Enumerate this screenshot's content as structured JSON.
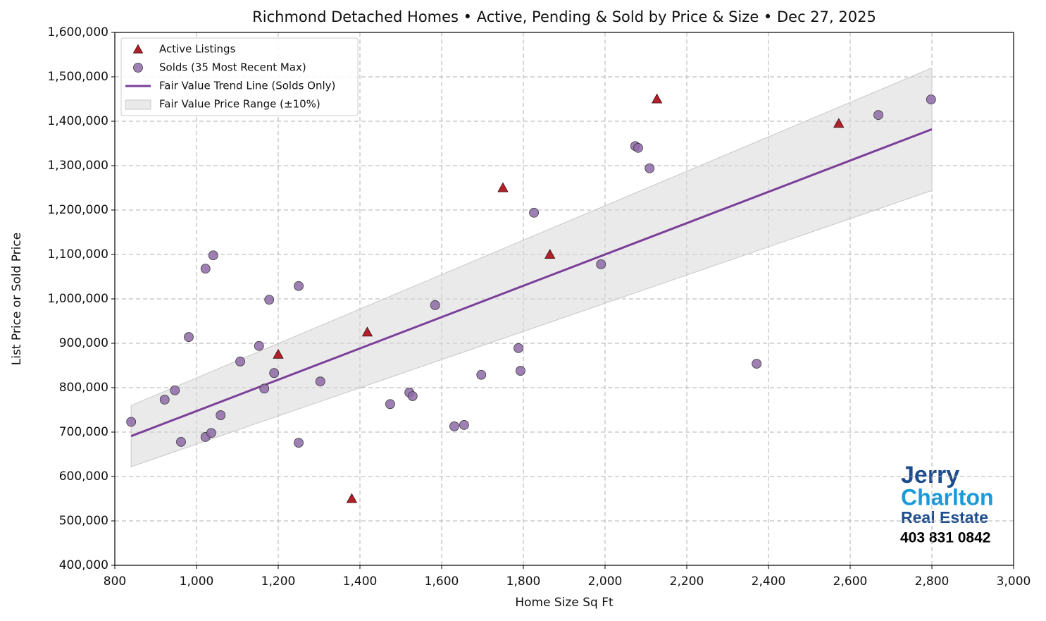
{
  "chart_data": {
    "type": "scatter",
    "title": "Richmond Detached Homes • Active, Pending & Sold by Price & Size • Dec 27, 2025",
    "x_label": "Home Size Sq Ft",
    "y_label": "List Price or Sold Price",
    "xlim": [
      800,
      3000
    ],
    "ylim": [
      400000,
      1600000
    ],
    "xticks": [
      800,
      {
        "value": 1000,
        "label": "1,000"
      },
      {
        "value": 1200,
        "label": "1,200"
      },
      {
        "value": 1400,
        "label": "1,400"
      },
      {
        "value": 1600,
        "label": "1,600"
      },
      {
        "value": 1800,
        "label": "1,800"
      },
      {
        "value": 2000,
        "label": "2,000"
      },
      {
        "value": 2200,
        "label": "2,200"
      },
      {
        "value": 2400,
        "label": "2,400"
      },
      {
        "value": 2600,
        "label": "2,600"
      },
      {
        "value": 2800,
        "label": "2,800"
      },
      {
        "value": 3000,
        "label": "3,000"
      }
    ],
    "yticks": [
      {
        "value": 400000,
        "label": "400,000"
      },
      {
        "value": 500000,
        "label": "500,000"
      },
      {
        "value": 600000,
        "label": "600,000"
      },
      {
        "value": 700000,
        "label": "700,000"
      },
      {
        "value": 800000,
        "label": "800,000"
      },
      {
        "value": 900000,
        "label": "900,000"
      },
      {
        "value": 1000000,
        "label": "1,000,000"
      },
      {
        "value": 1100000,
        "label": "1,100,000"
      },
      {
        "value": 1200000,
        "label": "1,200,000"
      },
      {
        "value": 1300000,
        "label": "1,300,000"
      },
      {
        "value": 1400000,
        "label": "1,400,000"
      },
      {
        "value": 1500000,
        "label": "1,500,000"
      },
      {
        "value": 1600000,
        "label": "1,600,000"
      }
    ],
    "grid": true,
    "legend": "upper-left",
    "series": [
      {
        "name": "Active Listings",
        "marker": "triangle",
        "color": "#b3202a",
        "x": [
          1200,
          1380,
          1418,
          1750,
          1865,
          2127,
          2572
        ],
        "values": [
          875000,
          550000,
          925000,
          1250000,
          1100000,
          1450000,
          1395000
        ]
      },
      {
        "name": "Solds (35 Most Recent Max)",
        "marker": "circle",
        "color": "#8e6aa8",
        "x": [
          840,
          922,
          947,
          962,
          981,
          1022,
          1022,
          1036,
          1041,
          1059,
          1107,
          1153,
          1166,
          1178,
          1190,
          1250,
          1250,
          1303,
          1474,
          1521,
          1529,
          1584,
          1631,
          1655,
          1697,
          1788,
          1793,
          1826,
          1990,
          2074,
          2081,
          2109,
          2371,
          2669,
          2798
        ],
        "values": [
          723000,
          773000,
          794000,
          678000,
          914000,
          1068000,
          689000,
          698000,
          1098000,
          738000,
          859000,
          894000,
          798000,
          998000,
          833000,
          1029000,
          676000,
          814000,
          763000,
          789000,
          781000,
          986000,
          713000,
          716000,
          829000,
          889000,
          838000,
          1194000,
          1078000,
          1344000,
          1340000,
          1294000,
          854000,
          1414000,
          1449000
        ]
      },
      {
        "name": "Fair Value Trend Line (Solds Only)",
        "marker": "line",
        "color": "#7b3f9a",
        "x": [
          840,
          2800
        ],
        "values": [
          691000,
          1382000
        ]
      },
      {
        "name": "Fair Value Price Range (±10%)",
        "marker": "band",
        "color": "#d9d9d9",
        "x": [
          840,
          2800
        ],
        "lower": [
          622000,
          1244000
        ],
        "upper": [
          760000,
          1520000
        ]
      }
    ]
  },
  "logo": {
    "line1": "Jerry",
    "line2": "Charlton",
    "line3": "Real Estate",
    "phone": "403 831 0842"
  }
}
